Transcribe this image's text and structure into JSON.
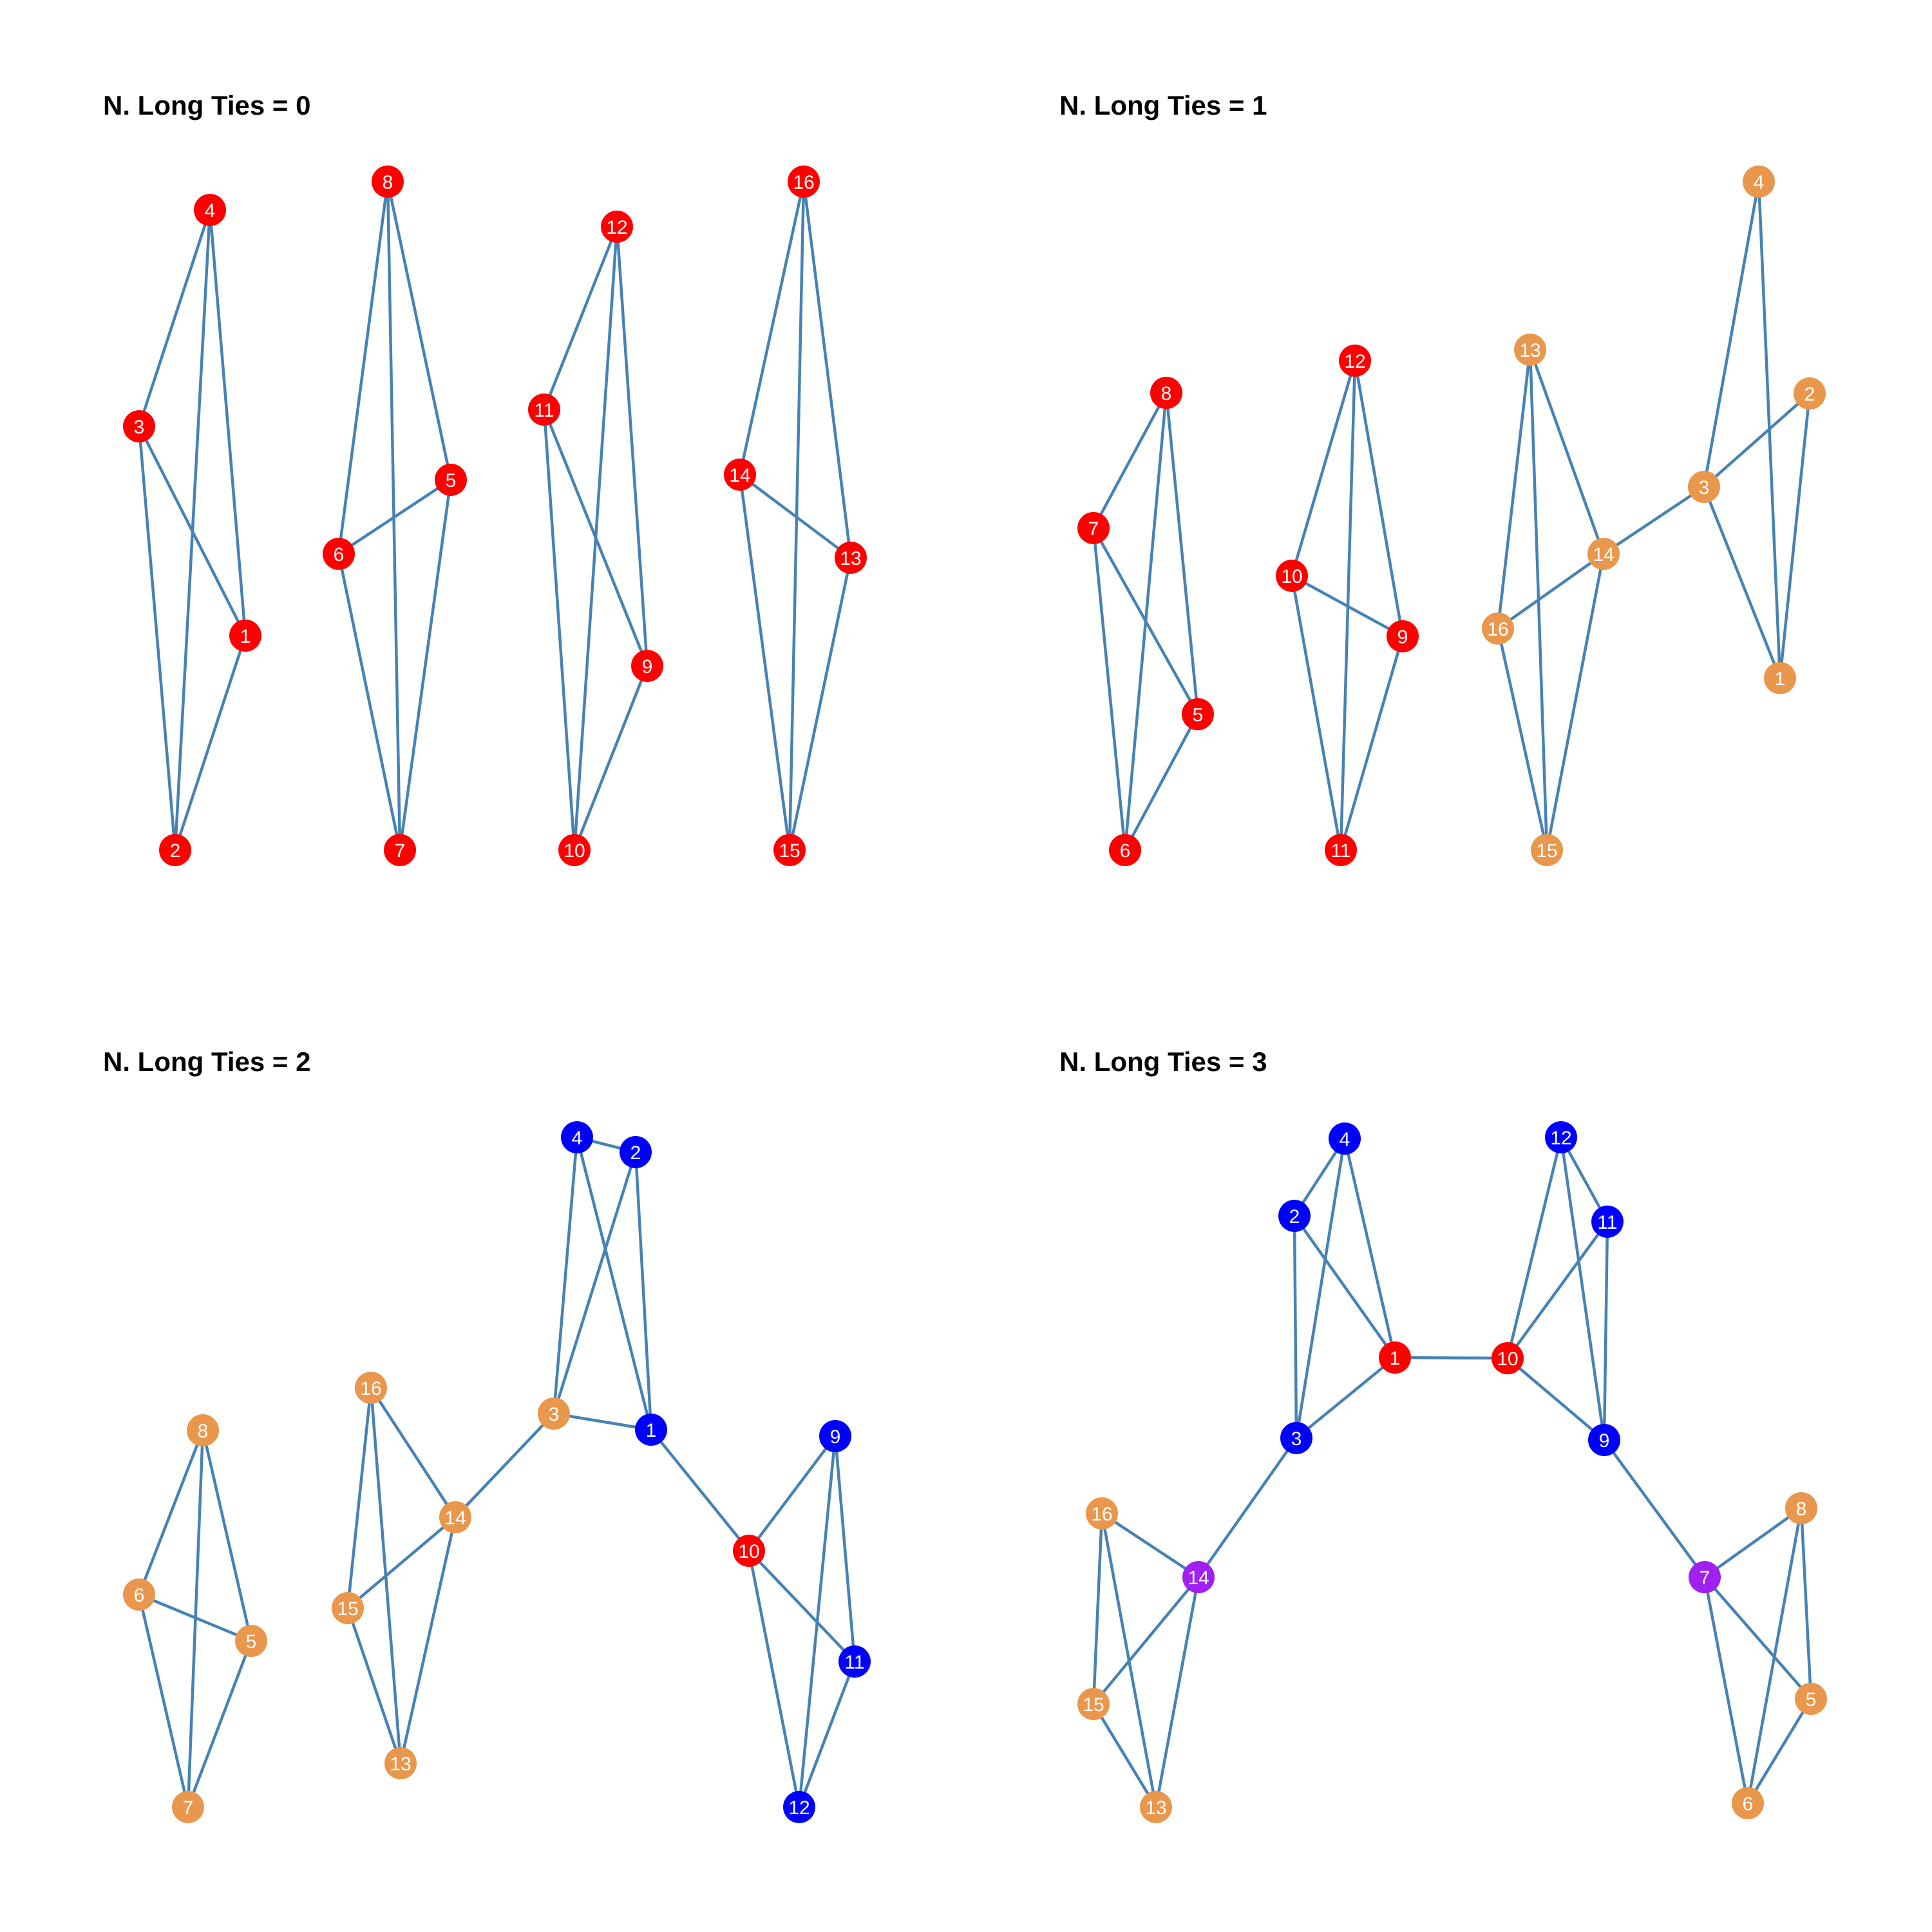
{
  "colors": {
    "edge": "#4682b4",
    "red": "#ff0000",
    "orange": "#e9974d",
    "blue": "#0000ff",
    "purple": "#a020f0",
    "label": "#ffffff"
  },
  "panels": [
    {
      "title": "N. Long Ties = 0",
      "nodes": [
        {
          "id": "1",
          "color": "red"
        },
        {
          "id": "2",
          "color": "red"
        },
        {
          "id": "3",
          "color": "red"
        },
        {
          "id": "4",
          "color": "red"
        },
        {
          "id": "5",
          "color": "red"
        },
        {
          "id": "6",
          "color": "red"
        },
        {
          "id": "7",
          "color": "red"
        },
        {
          "id": "8",
          "color": "red"
        },
        {
          "id": "9",
          "color": "red"
        },
        {
          "id": "10",
          "color": "red"
        },
        {
          "id": "11",
          "color": "red"
        },
        {
          "id": "12",
          "color": "red"
        },
        {
          "id": "13",
          "color": "red"
        },
        {
          "id": "14",
          "color": "red"
        },
        {
          "id": "15",
          "color": "red"
        },
        {
          "id": "16",
          "color": "red"
        }
      ],
      "edges": [
        [
          "4",
          "3"
        ],
        [
          "4",
          "1"
        ],
        [
          "4",
          "2"
        ],
        [
          "3",
          "1"
        ],
        [
          "3",
          "2"
        ],
        [
          "1",
          "2"
        ],
        [
          "8",
          "6"
        ],
        [
          "8",
          "5"
        ],
        [
          "8",
          "7"
        ],
        [
          "6",
          "5"
        ],
        [
          "6",
          "7"
        ],
        [
          "5",
          "7"
        ],
        [
          "12",
          "11"
        ],
        [
          "12",
          "9"
        ],
        [
          "12",
          "10"
        ],
        [
          "11",
          "9"
        ],
        [
          "11",
          "10"
        ],
        [
          "9",
          "10"
        ],
        [
          "16",
          "14"
        ],
        [
          "16",
          "13"
        ],
        [
          "16",
          "15"
        ],
        [
          "14",
          "13"
        ],
        [
          "14",
          "15"
        ],
        [
          "13",
          "15"
        ]
      ]
    },
    {
      "title": "N. Long Ties = 1",
      "nodes": [
        {
          "id": "8",
          "color": "red"
        },
        {
          "id": "7",
          "color": "red"
        },
        {
          "id": "5",
          "color": "red"
        },
        {
          "id": "6",
          "color": "red"
        },
        {
          "id": "12",
          "color": "red"
        },
        {
          "id": "10",
          "color": "red"
        },
        {
          "id": "9",
          "color": "red"
        },
        {
          "id": "11",
          "color": "red"
        },
        {
          "id": "13",
          "color": "orange"
        },
        {
          "id": "14",
          "color": "orange"
        },
        {
          "id": "16",
          "color": "orange"
        },
        {
          "id": "15",
          "color": "orange"
        },
        {
          "id": "4",
          "color": "orange"
        },
        {
          "id": "2",
          "color": "orange"
        },
        {
          "id": "3",
          "color": "orange"
        },
        {
          "id": "1",
          "color": "orange"
        }
      ],
      "edges": [
        [
          "8",
          "7"
        ],
        [
          "8",
          "5"
        ],
        [
          "8",
          "6"
        ],
        [
          "7",
          "5"
        ],
        [
          "7",
          "6"
        ],
        [
          "5",
          "6"
        ],
        [
          "12",
          "10"
        ],
        [
          "12",
          "9"
        ],
        [
          "12",
          "11"
        ],
        [
          "10",
          "9"
        ],
        [
          "10",
          "11"
        ],
        [
          "9",
          "11"
        ],
        [
          "13",
          "14"
        ],
        [
          "13",
          "16"
        ],
        [
          "13",
          "15"
        ],
        [
          "14",
          "16"
        ],
        [
          "14",
          "15"
        ],
        [
          "16",
          "15"
        ],
        [
          "4",
          "3"
        ],
        [
          "4",
          "1"
        ],
        [
          "2",
          "3"
        ],
        [
          "2",
          "1"
        ],
        [
          "3",
          "1"
        ],
        [
          "14",
          "3"
        ]
      ]
    },
    {
      "title": "N. Long Ties = 2",
      "nodes": [
        {
          "id": "8",
          "color": "orange"
        },
        {
          "id": "6",
          "color": "orange"
        },
        {
          "id": "5",
          "color": "orange"
        },
        {
          "id": "7",
          "color": "orange"
        },
        {
          "id": "16",
          "color": "orange"
        },
        {
          "id": "14",
          "color": "orange"
        },
        {
          "id": "15",
          "color": "orange"
        },
        {
          "id": "13",
          "color": "orange"
        },
        {
          "id": "3",
          "color": "orange"
        },
        {
          "id": "4",
          "color": "blue"
        },
        {
          "id": "2",
          "color": "blue"
        },
        {
          "id": "1",
          "color": "blue"
        },
        {
          "id": "10",
          "color": "red"
        },
        {
          "id": "9",
          "color": "blue"
        },
        {
          "id": "11",
          "color": "blue"
        },
        {
          "id": "12",
          "color": "blue"
        }
      ],
      "edges": [
        [
          "8",
          "6"
        ],
        [
          "8",
          "5"
        ],
        [
          "8",
          "7"
        ],
        [
          "6",
          "5"
        ],
        [
          "6",
          "7"
        ],
        [
          "5",
          "7"
        ],
        [
          "16",
          "14"
        ],
        [
          "16",
          "15"
        ],
        [
          "16",
          "13"
        ],
        [
          "14",
          "15"
        ],
        [
          "14",
          "13"
        ],
        [
          "15",
          "13"
        ],
        [
          "4",
          "2"
        ],
        [
          "4",
          "3"
        ],
        [
          "4",
          "1"
        ],
        [
          "2",
          "3"
        ],
        [
          "2",
          "1"
        ],
        [
          "3",
          "1"
        ],
        [
          "14",
          "3"
        ],
        [
          "1",
          "10"
        ],
        [
          "10",
          "9"
        ],
        [
          "10",
          "11"
        ],
        [
          "10",
          "12"
        ],
        [
          "9",
          "11"
        ],
        [
          "9",
          "12"
        ],
        [
          "11",
          "12"
        ]
      ]
    },
    {
      "title": "N. Long Ties = 3",
      "nodes": [
        {
          "id": "4",
          "color": "blue"
        },
        {
          "id": "2",
          "color": "blue"
        },
        {
          "id": "1",
          "color": "red"
        },
        {
          "id": "3",
          "color": "blue"
        },
        {
          "id": "12",
          "color": "blue"
        },
        {
          "id": "11",
          "color": "blue"
        },
        {
          "id": "10",
          "color": "red"
        },
        {
          "id": "9",
          "color": "blue"
        },
        {
          "id": "16",
          "color": "orange"
        },
        {
          "id": "14",
          "color": "purple"
        },
        {
          "id": "15",
          "color": "orange"
        },
        {
          "id": "13",
          "color": "orange"
        },
        {
          "id": "8",
          "color": "orange"
        },
        {
          "id": "7",
          "color": "purple"
        },
        {
          "id": "5",
          "color": "orange"
        },
        {
          "id": "6",
          "color": "orange"
        }
      ],
      "edges": [
        [
          "4",
          "2"
        ],
        [
          "4",
          "3"
        ],
        [
          "4",
          "1"
        ],
        [
          "2",
          "3"
        ],
        [
          "2",
          "1"
        ],
        [
          "3",
          "1"
        ],
        [
          "12",
          "10"
        ],
        [
          "12",
          "11"
        ],
        [
          "12",
          "9"
        ],
        [
          "11",
          "10"
        ],
        [
          "11",
          "9"
        ],
        [
          "10",
          "9"
        ],
        [
          "1",
          "10"
        ],
        [
          "3",
          "14"
        ],
        [
          "9",
          "7"
        ],
        [
          "16",
          "14"
        ],
        [
          "16",
          "15"
        ],
        [
          "16",
          "13"
        ],
        [
          "14",
          "15"
        ],
        [
          "14",
          "13"
        ],
        [
          "15",
          "13"
        ],
        [
          "8",
          "7"
        ],
        [
          "8",
          "5"
        ],
        [
          "8",
          "6"
        ],
        [
          "7",
          "5"
        ],
        [
          "7",
          "6"
        ],
        [
          "5",
          "6"
        ]
      ]
    }
  ]
}
